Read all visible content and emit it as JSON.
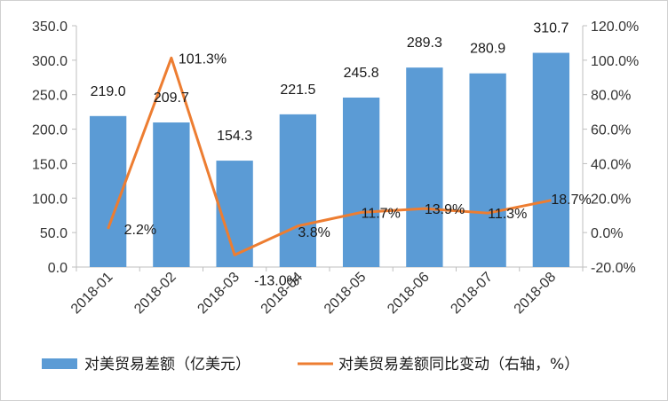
{
  "chart_data": {
    "type": "bar",
    "categories": [
      "2018-01",
      "2018-02",
      "2018-03",
      "2018-04",
      "2018-05",
      "2018-06",
      "2018-07",
      "2018-08"
    ],
    "series": [
      {
        "name": "对美贸易差额（亿美元）",
        "type": "bar",
        "axis": "left",
        "color": "#5B9BD5",
        "values": [
          219.0,
          209.7,
          154.3,
          221.5,
          245.8,
          289.3,
          280.9,
          310.7
        ],
        "labels": [
          "219.0",
          "209.7",
          "154.3",
          "221.5",
          "245.8",
          "289.3",
          "280.9",
          "310.7"
        ]
      },
      {
        "name": "对美贸易差额同比变动（右轴，%）",
        "type": "line",
        "axis": "right",
        "color": "#ED7D31",
        "values": [
          2.2,
          101.3,
          -13.0,
          3.8,
          11.7,
          13.9,
          11.3,
          18.7
        ],
        "labels": [
          "2.2%",
          "101.3%",
          "-13.0%",
          "3.8%",
          "11.7%",
          "13.9%",
          "11.3%",
          "18.7%"
        ]
      }
    ],
    "y_left": {
      "range": [
        0,
        350
      ],
      "ticks": [
        0,
        50,
        100,
        150,
        200,
        250,
        300,
        350
      ],
      "tick_labels": [
        "0.0",
        "50.0",
        "100.0",
        "150.0",
        "200.0",
        "250.0",
        "300.0",
        "350.0"
      ]
    },
    "y_right": {
      "range": [
        -20,
        120
      ],
      "ticks": [
        -20,
        0,
        20,
        40,
        60,
        80,
        100,
        120
      ],
      "tick_labels": [
        "-20.0%",
        "0.0%",
        "20.0%",
        "40.0%",
        "60.0%",
        "80.0%",
        "100.0%",
        "120.0%"
      ]
    },
    "title": "",
    "xlabel": "",
    "ylabel": "",
    "grid": false,
    "legend_position": "bottom"
  }
}
